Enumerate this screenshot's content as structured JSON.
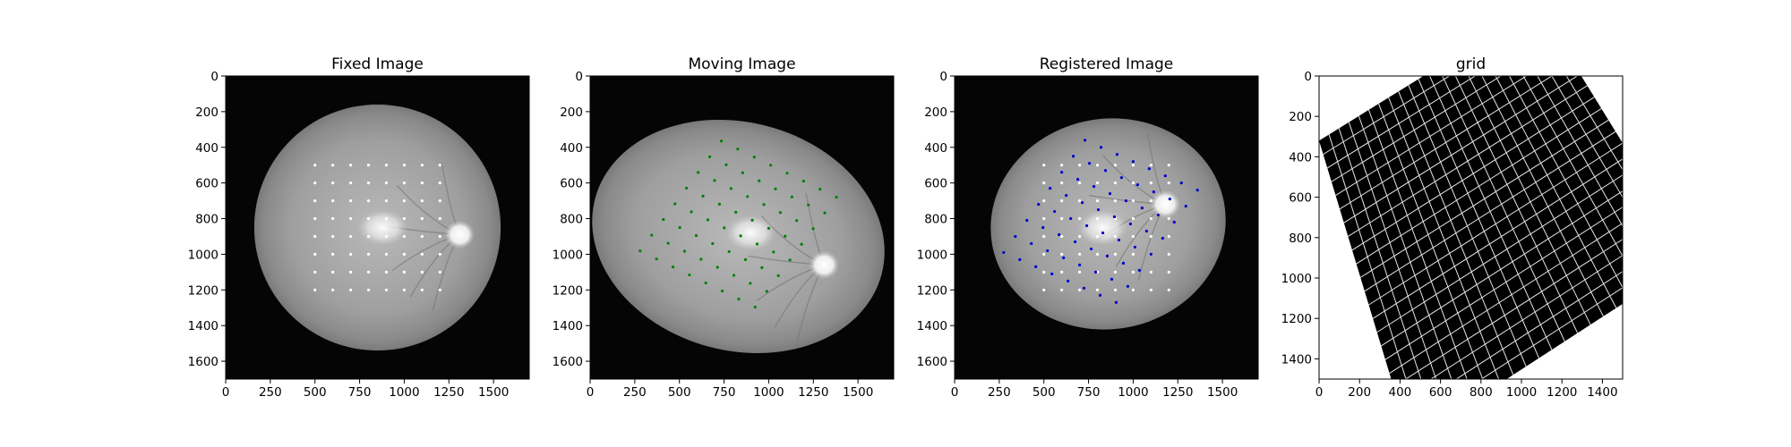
{
  "chart_data": [
    {
      "type": "image",
      "title": "Fixed Image",
      "xlim": [
        0,
        1700
      ],
      "ylim": [
        1700,
        0
      ],
      "xticks": [
        0,
        250,
        500,
        750,
        1000,
        1250,
        1500
      ],
      "yticks": [
        0,
        200,
        400,
        600,
        800,
        1000,
        1200,
        1400,
        1600
      ],
      "fundus": {
        "cx": 850,
        "cy": 850,
        "rx": 690,
        "ry": 690,
        "rot": 0,
        "disc": [
          1310,
          890
        ],
        "lesion": [
          880,
          850
        ]
      },
      "points": {
        "color": "#ffffff",
        "grid": {
          "x_start": 500,
          "x_step": 100,
          "nx": 8,
          "y_start": 500,
          "y_step": 100,
          "ny": 8
        }
      }
    },
    {
      "type": "image",
      "title": "Moving Image",
      "xlim": [
        0,
        1700
      ],
      "ylim": [
        1700,
        0
      ],
      "xticks": [
        0,
        250,
        500,
        750,
        1000,
        1250,
        1500
      ],
      "yticks": [
        0,
        200,
        400,
        600,
        800,
        1000,
        1200,
        1400,
        1600
      ],
      "fundus": {
        "cx": 830,
        "cy": 900,
        "rx": 830,
        "ry": 640,
        "rot": 15,
        "disc": [
          1310,
          1060
        ],
        "lesion": [
          900,
          880
        ]
      },
      "points": {
        "color": "#008000",
        "grid": {
          "origin": [
            735,
            365
          ],
          "step_i": [
            92,
            45
          ],
          "step_j": [
            -65,
            88
          ],
          "ni": 8,
          "nj": 8
        }
      }
    },
    {
      "type": "image",
      "title": "Registered Image",
      "xlim": [
        0,
        1700
      ],
      "ylim": [
        1700,
        0
      ],
      "xticks": [
        0,
        250,
        500,
        750,
        1000,
        1250,
        1500
      ],
      "yticks": [
        0,
        200,
        400,
        600,
        800,
        1000,
        1200,
        1400,
        1600
      ],
      "fundus": {
        "cx": 860,
        "cy": 830,
        "rx": 660,
        "ry": 590,
        "rot": -10,
        "disc": [
          1180,
          720
        ],
        "lesion": [
          830,
          850
        ]
      },
      "points": [
        {
          "color": "#ffffff",
          "grid": {
            "x_start": 500,
            "x_step": 100,
            "nx": 8,
            "y_start": 500,
            "y_step": 100,
            "ny": 8
          }
        },
        {
          "color": "#0000cc",
          "grid": {
            "origin": [
              730,
              360
            ],
            "step_i": [
              90,
              40
            ],
            "step_j": [
              -65,
              90
            ],
            "ni": 8,
            "nj": 8
          }
        }
      ]
    },
    {
      "type": "grid",
      "title": "grid",
      "xlim": [
        0,
        1500
      ],
      "ylim": [
        1500,
        0
      ],
      "xticks": [
        0,
        200,
        400,
        600,
        800,
        1000,
        1200,
        1400
      ],
      "yticks": [
        0,
        200,
        400,
        600,
        800,
        1000,
        1200,
        1400
      ],
      "warped_quad": [
        [
          0,
          320
        ],
        [
          1080,
          -350
        ],
        [
          1850,
          900
        ],
        [
          450,
          1810
        ]
      ],
      "divisions": 22
    }
  ]
}
